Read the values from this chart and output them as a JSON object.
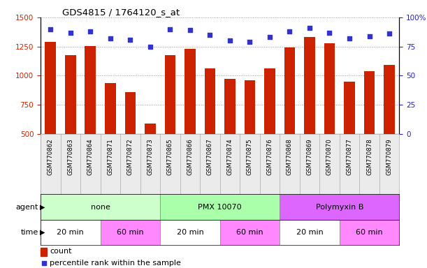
{
  "title": "GDS4815 / 1764120_s_at",
  "samples": [
    "GSM770862",
    "GSM770863",
    "GSM770864",
    "GSM770871",
    "GSM770872",
    "GSM770873",
    "GSM770865",
    "GSM770866",
    "GSM770867",
    "GSM770874",
    "GSM770875",
    "GSM770876",
    "GSM770868",
    "GSM770869",
    "GSM770870",
    "GSM770877",
    "GSM770878",
    "GSM770879"
  ],
  "counts": [
    1290,
    1175,
    1255,
    940,
    860,
    590,
    1175,
    1230,
    1060,
    975,
    960,
    1060,
    1245,
    1335,
    1280,
    950,
    1040,
    1090
  ],
  "percentile_ranks": [
    90,
    87,
    88,
    82,
    81,
    75,
    90,
    89,
    85,
    80,
    79,
    83,
    88,
    91,
    87,
    82,
    84,
    86
  ],
  "ylim_left": [
    500,
    1500
  ],
  "ylim_right": [
    0,
    100
  ],
  "yticks_left": [
    500,
    750,
    1000,
    1250,
    1500
  ],
  "yticks_right": [
    0,
    25,
    50,
    75,
    100
  ],
  "bar_color": "#cc2200",
  "dot_color": "#3333cc",
  "agent_groups": [
    {
      "label": "none",
      "start": 0,
      "end": 6,
      "color": "#ccffcc"
    },
    {
      "label": "PMX 10070",
      "start": 6,
      "end": 12,
      "color": "#aaffaa"
    },
    {
      "label": "Polymyxin B",
      "start": 12,
      "end": 18,
      "color": "#dd66ff"
    }
  ],
  "time_groups": [
    {
      "label": "20 min",
      "start": 0,
      "end": 3,
      "color": "#ffffff"
    },
    {
      "label": "60 min",
      "start": 3,
      "end": 6,
      "color": "#ff88ff"
    },
    {
      "label": "20 min",
      "start": 6,
      "end": 9,
      "color": "#ffffff"
    },
    {
      "label": "60 min",
      "start": 9,
      "end": 12,
      "color": "#ff88ff"
    },
    {
      "label": "20 min",
      "start": 12,
      "end": 15,
      "color": "#ffffff"
    },
    {
      "label": "60 min",
      "start": 15,
      "end": 18,
      "color": "#ff88ff"
    }
  ],
  "bar_color_legend": "#cc2200",
  "dot_color_legend": "#3333cc",
  "left_ytick_color": "#cc2200",
  "right_ytick_color": "#2222bb",
  "grid_color": "#999999",
  "bg_color": "#ffffff"
}
